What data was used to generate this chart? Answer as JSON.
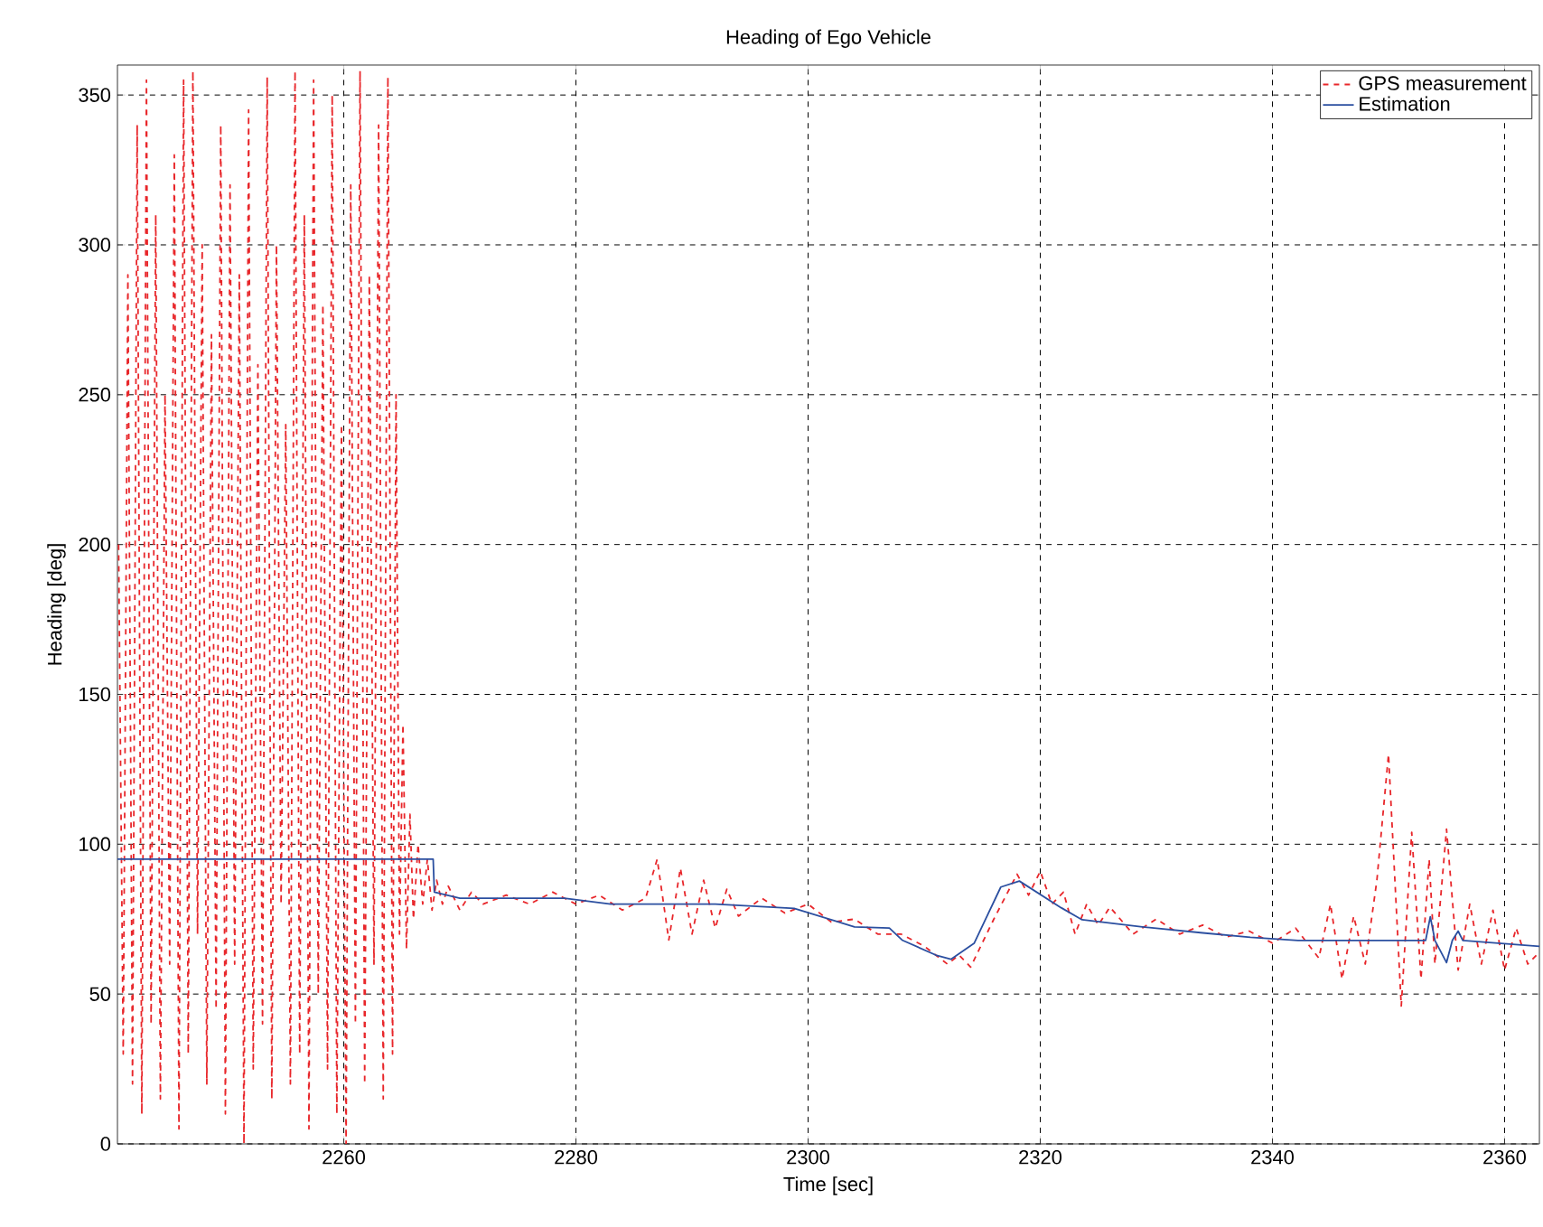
{
  "chart_data": {
    "type": "line",
    "title": "Heading of Ego Vehicle",
    "xlabel": "Time [sec]",
    "ylabel": "Heading [deg]",
    "xlim": [
      2240.5,
      2363
    ],
    "ylim": [
      0,
      360
    ],
    "xticks": [
      2260,
      2280,
      2300,
      2320,
      2340,
      2360
    ],
    "yticks": [
      0,
      50,
      100,
      150,
      200,
      250,
      300,
      350
    ],
    "grid": true,
    "legend": "top right",
    "series": [
      {
        "name": "GPS measurement",
        "color": "#e8262a",
        "line_style": "dashed",
        "x": [
          2240.6,
          2241.0,
          2241.4,
          2241.8,
          2242.2,
          2242.6,
          2243.0,
          2243.4,
          2243.8,
          2244.2,
          2244.6,
          2245.0,
          2245.4,
          2245.8,
          2246.2,
          2246.6,
          2247.0,
          2247.4,
          2247.8,
          2248.2,
          2248.6,
          2249.0,
          2249.4,
          2249.8,
          2250.2,
          2250.6,
          2251.0,
          2251.4,
          2251.8,
          2252.2,
          2252.6,
          2253.0,
          2253.4,
          2253.8,
          2254.2,
          2254.6,
          2255.0,
          2255.4,
          2255.8,
          2256.2,
          2256.6,
          2257.0,
          2257.4,
          2257.8,
          2258.2,
          2258.6,
          2259.0,
          2259.4,
          2259.8,
          2260.2,
          2260.6,
          2261.0,
          2261.4,
          2261.8,
          2262.2,
          2262.6,
          2263.0,
          2263.4,
          2263.8,
          2264.2,
          2264.5,
          2264.8,
          2265.1,
          2265.4,
          2265.7,
          2266.0,
          2266.4,
          2266.8,
          2267.2,
          2267.6,
          2268.0,
          2268.5,
          2269,
          2270,
          2271,
          2272,
          2274,
          2276,
          2278,
          2280,
          2282,
          2284,
          2286,
          2287,
          2288,
          2289,
          2290,
          2291,
          2292,
          2293,
          2294,
          2296,
          2298,
          2300,
          2302,
          2304,
          2306,
          2308,
          2310,
          2312,
          2313,
          2314,
          2316,
          2318,
          2319,
          2320,
          2321,
          2322,
          2323,
          2324,
          2325,
          2326,
          2328,
          2330,
          2332,
          2334,
          2336,
          2338,
          2340,
          2342,
          2344,
          2345,
          2346,
          2347,
          2348,
          2349,
          2350,
          2351.1,
          2352,
          2352.8,
          2353.5,
          2354,
          2355,
          2356,
          2357,
          2358,
          2359,
          2360,
          2361,
          2362,
          2363
        ],
        "values": [
          200,
          30,
          290,
          20,
          340,
          10,
          355,
          40,
          310,
          15,
          250,
          60,
          330,
          5,
          355,
          30,
          358,
          70,
          300,
          20,
          270,
          45,
          340,
          10,
          320,
          60,
          290,
          0,
          345,
          25,
          260,
          40,
          356,
          15,
          300,
          80,
          240,
          20,
          358,
          30,
          310,
          5,
          355,
          50,
          280,
          25,
          350,
          10,
          240,
          0,
          320,
          40,
          358,
          20,
          290,
          60,
          340,
          15,
          356,
          30,
          250,
          70,
          140,
          65,
          110,
          75,
          100,
          80,
          95,
          78,
          88,
          80,
          86,
          78,
          84,
          80,
          83,
          80,
          84,
          80,
          83,
          78,
          82,
          95,
          68,
          92,
          70,
          88,
          72,
          85,
          76,
          82,
          77,
          80,
          74,
          75,
          70,
          70,
          66,
          60,
          63,
          59,
          75,
          90,
          83,
          91,
          80,
          84,
          70,
          80,
          73,
          79,
          70,
          75,
          70,
          73,
          69,
          71,
          67,
          72,
          62,
          80,
          55,
          76,
          60,
          88,
          130,
          46,
          104,
          55,
          95,
          60,
          105,
          58,
          80,
          60,
          78,
          58,
          72,
          60,
          64
        ]
      },
      {
        "name": "Estimation",
        "color": "#2b4fa0",
        "line_style": "solid",
        "x": [
          2240.5,
          2267.7,
          2267.8,
          2270,
          2279,
          2283,
          2292,
          2298.8,
          2304,
          2307,
          2308.1,
          2311,
          2312.3,
          2314.3,
          2316.6,
          2318.2,
          2321.8,
          2323.6,
          2328.8,
          2334,
          2338.1,
          2342.2,
          2353.2,
          2353.6,
          2354,
          2355,
          2355.5,
          2356,
          2356.4,
          2363
        ],
        "values": [
          95,
          95,
          84,
          82,
          82,
          80,
          80,
          78.6,
          72.4,
          72,
          68,
          63,
          61.6,
          66.9,
          85.7,
          87.7,
          78.8,
          74.8,
          72.4,
          70.4,
          68.9,
          67.9,
          67.9,
          75.8,
          67.9,
          60.5,
          67.9,
          71,
          67.9,
          65.9
        ]
      }
    ]
  }
}
